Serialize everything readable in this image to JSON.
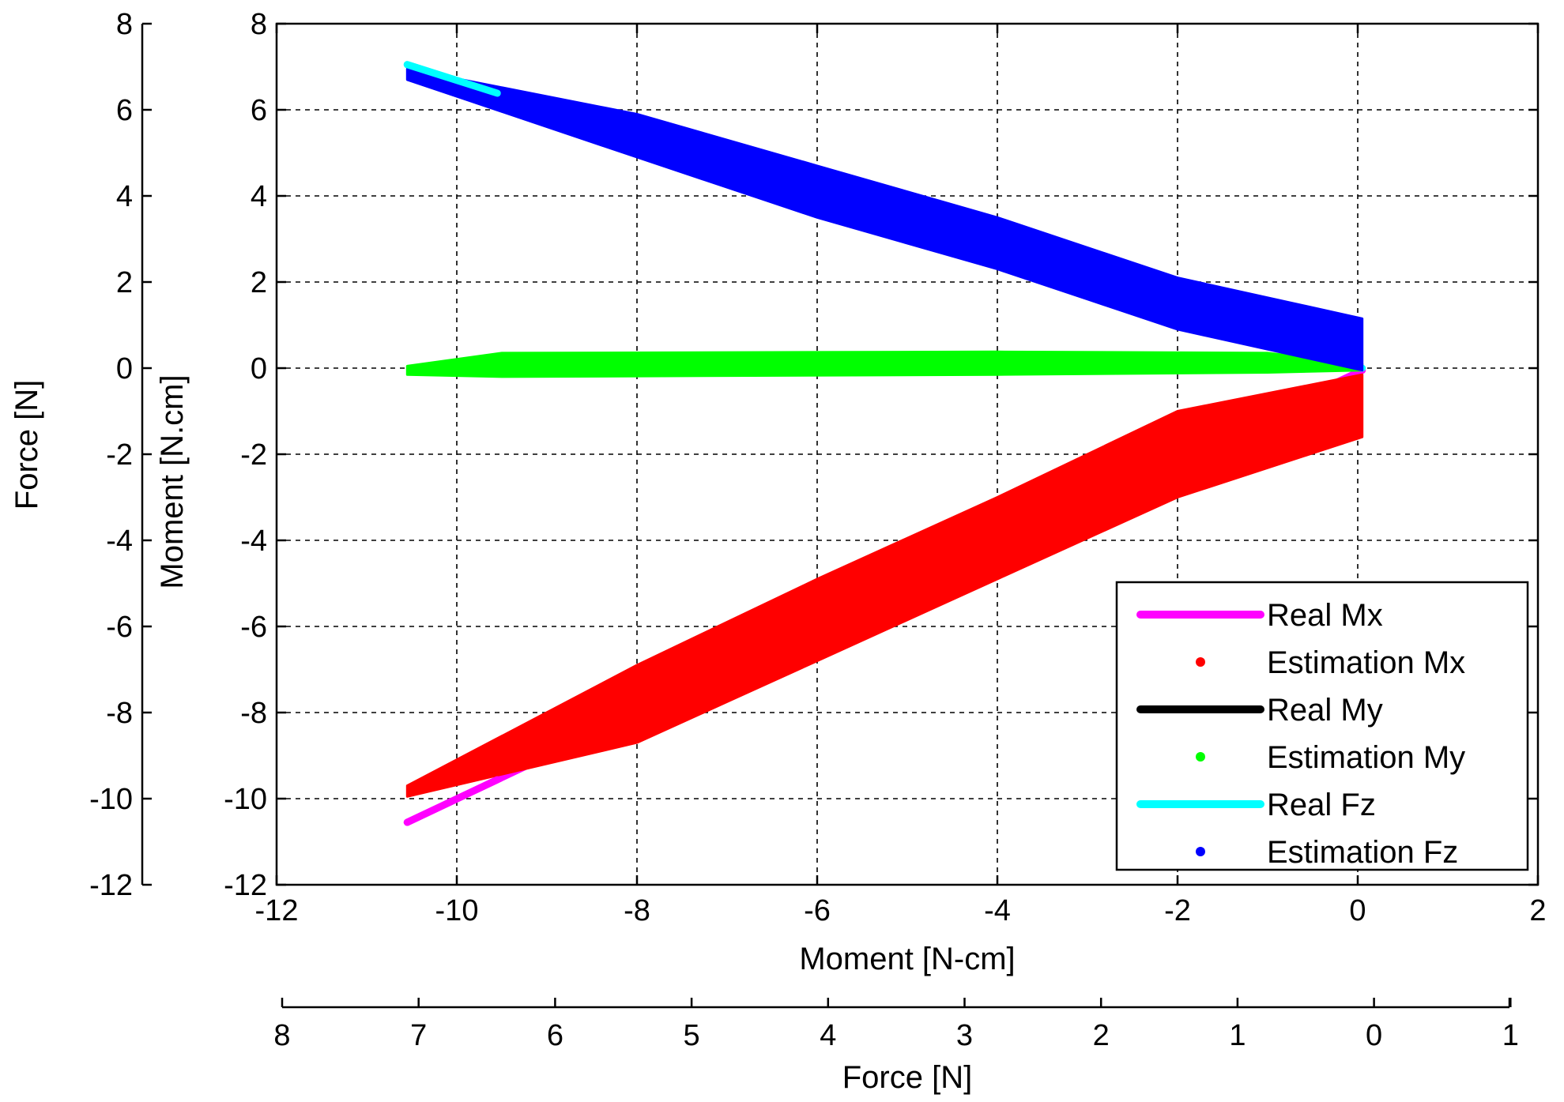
{
  "chart_data": {
    "type": "scatter",
    "xlabel": "Moment [N-cm]",
    "ylabel": "Moment [N.cm]",
    "x2label": "Force [N]",
    "y2label": "Force [N]",
    "xlim": [
      -12,
      2
    ],
    "ylim": [
      -12,
      8
    ],
    "grid": true,
    "legend_position": "bottom-right",
    "x_ticks": [
      "-12",
      "-10",
      "-8",
      "-6",
      "-4",
      "-2",
      "0",
      "2"
    ],
    "y_ticks": [
      "8",
      "6",
      "4",
      "2",
      "0",
      "-2",
      "-4",
      "-6",
      "-8",
      "-10",
      "-12"
    ],
    "y2_ticks": [
      "8",
      "6",
      "4",
      "2",
      "0",
      "-2",
      "-4",
      "-6",
      "-8",
      "-10",
      "-12"
    ],
    "x2_ticks": [
      "8",
      "7",
      "6",
      "5",
      "4",
      "3",
      "2",
      "1",
      "0",
      "1"
    ],
    "series": [
      {
        "name": "Real Mx",
        "color": "#ff00ff",
        "style": "line",
        "points": [
          [
            -10.55,
            -10.55
          ],
          [
            0.05,
            -0.05
          ]
        ]
      },
      {
        "name": "Estimation Mx",
        "color": "#ff0000",
        "style": "band",
        "upper": [
          [
            -10.55,
            -9.7
          ],
          [
            -8,
            -6.9
          ],
          [
            -6,
            -4.9
          ],
          [
            -4,
            -3.0
          ],
          [
            -2,
            -1.0
          ],
          [
            0.05,
            -0.15
          ]
        ],
        "lower": [
          [
            0.05,
            -1.6
          ],
          [
            -2,
            -3.0
          ],
          [
            -4,
            -4.9
          ],
          [
            -6,
            -6.8
          ],
          [
            -8,
            -8.7
          ],
          [
            -10.55,
            -9.95
          ]
        ]
      },
      {
        "name": "Real My",
        "color": "#000000",
        "style": "line",
        "points": []
      },
      {
        "name": "Estimation My",
        "color": "#00ff00",
        "style": "band",
        "upper": [
          [
            -10.55,
            0.05
          ],
          [
            -9.5,
            0.35
          ],
          [
            -4,
            0.38
          ],
          [
            -1,
            0.35
          ],
          [
            0.05,
            0.1
          ]
        ],
        "lower": [
          [
            0.05,
            -0.05
          ],
          [
            -1,
            -0.1
          ],
          [
            -4,
            -0.15
          ],
          [
            -9.5,
            -0.2
          ],
          [
            -10.55,
            -0.15
          ]
        ]
      },
      {
        "name": "Real Fz",
        "color": "#00ffff",
        "style": "line",
        "points": [
          [
            -10.55,
            7.05
          ],
          [
            0.05,
            0.0
          ]
        ]
      },
      {
        "name": "Estimation Fz",
        "color": "#0000ff",
        "style": "band",
        "upper": [
          [
            -10.55,
            6.95
          ],
          [
            -8,
            5.9
          ],
          [
            -6,
            4.7
          ],
          [
            -4,
            3.5
          ],
          [
            -2,
            2.1
          ],
          [
            0.05,
            1.15
          ]
        ],
        "lower": [
          [
            0.05,
            -0.05
          ],
          [
            -2,
            0.9
          ],
          [
            -4,
            2.3
          ],
          [
            -6,
            3.5
          ],
          [
            -8,
            4.9
          ],
          [
            -10.55,
            6.7
          ]
        ]
      }
    ]
  }
}
